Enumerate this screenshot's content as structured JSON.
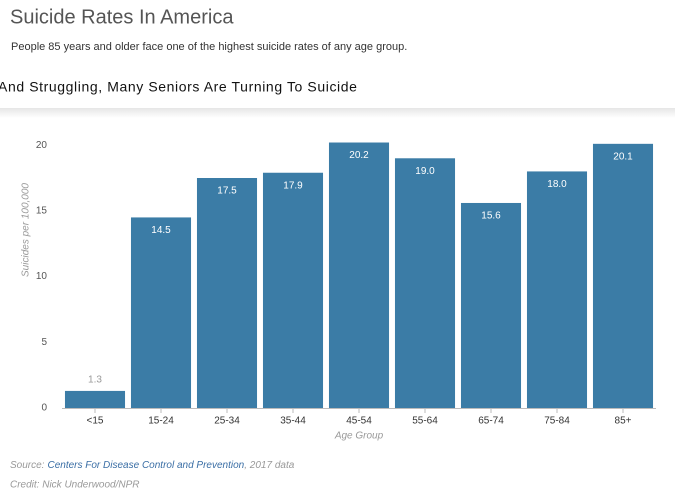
{
  "title": "Suicide Rates In America",
  "subtitle": "People 85 years and older face one of the highest suicide rates of any age group.",
  "source": {
    "label": "Source:",
    "link": "Centers For Disease Control and Prevention",
    "note": ", 2017 data"
  },
  "credit": "Credit: Nick Underwood/NPR",
  "chart_data": {
    "type": "bar",
    "title": "And Struggling, Many Seniors Are Turning To Suicide",
    "x_label": "Age Group",
    "y_label": "Suicides per 100,000",
    "categories": [
      "<15",
      "15-24",
      "25-34",
      "35-44",
      "45-54",
      "55-64",
      "65-74",
      "75-84",
      "85+"
    ],
    "values": [
      1.3,
      14.5,
      17.5,
      17.9,
      20.2,
      19.0,
      15.6,
      18.0,
      20.1
    ],
    "value_labels": [
      "1.3",
      "14.5",
      "17.5",
      "17.9",
      "20.2",
      "19.0",
      "15.6",
      "18.0",
      "20.1"
    ],
    "color": "#3b7ca6",
    "ylim": [
      0,
      21
    ],
    "yticks": [
      0,
      5,
      10,
      15,
      20
    ],
    "grid": false
  }
}
